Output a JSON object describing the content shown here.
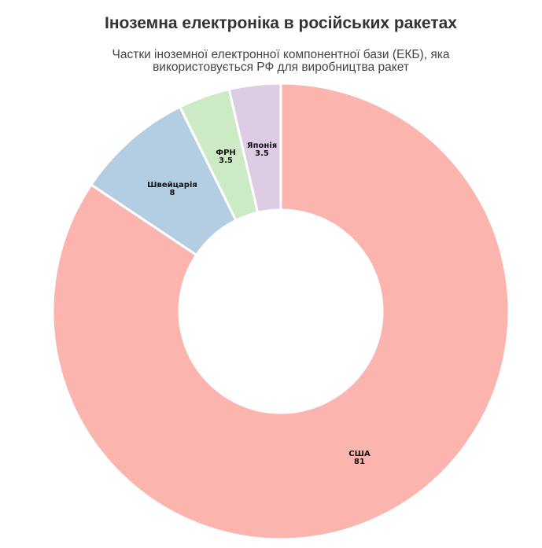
{
  "header": {
    "title": "Іноземна електроніка в російських ракетах",
    "subtitle_line1": "Частки іноземної електронної компонентної бази (ЕКБ), яка",
    "subtitle_line2": "використовується РФ для виробництва ракет"
  },
  "chart_data": {
    "type": "pie",
    "variant": "donut",
    "title": "Іноземна електроніка в російських ракетах",
    "subtitle": "Частки іноземної електронної компонентної бази (ЕКБ), яка використовується РФ для виробництва ракет",
    "categories": [
      "США",
      "Швейцарія",
      "ФРН",
      "Японія"
    ],
    "values": [
      81,
      8,
      3.5,
      3.5
    ],
    "colors": [
      "#fbb4ae",
      "#b3cde3",
      "#ccebc5",
      "#decbe4"
    ],
    "labels": [
      {
        "name": "США",
        "value": "81"
      },
      {
        "name": "Швейцарія",
        "value": "8"
      },
      {
        "name": "ФРН",
        "value": "3.5"
      },
      {
        "name": "Японія",
        "value": "3.5"
      }
    ],
    "start_angle": "top",
    "direction": "clockwise",
    "legend": "none"
  }
}
